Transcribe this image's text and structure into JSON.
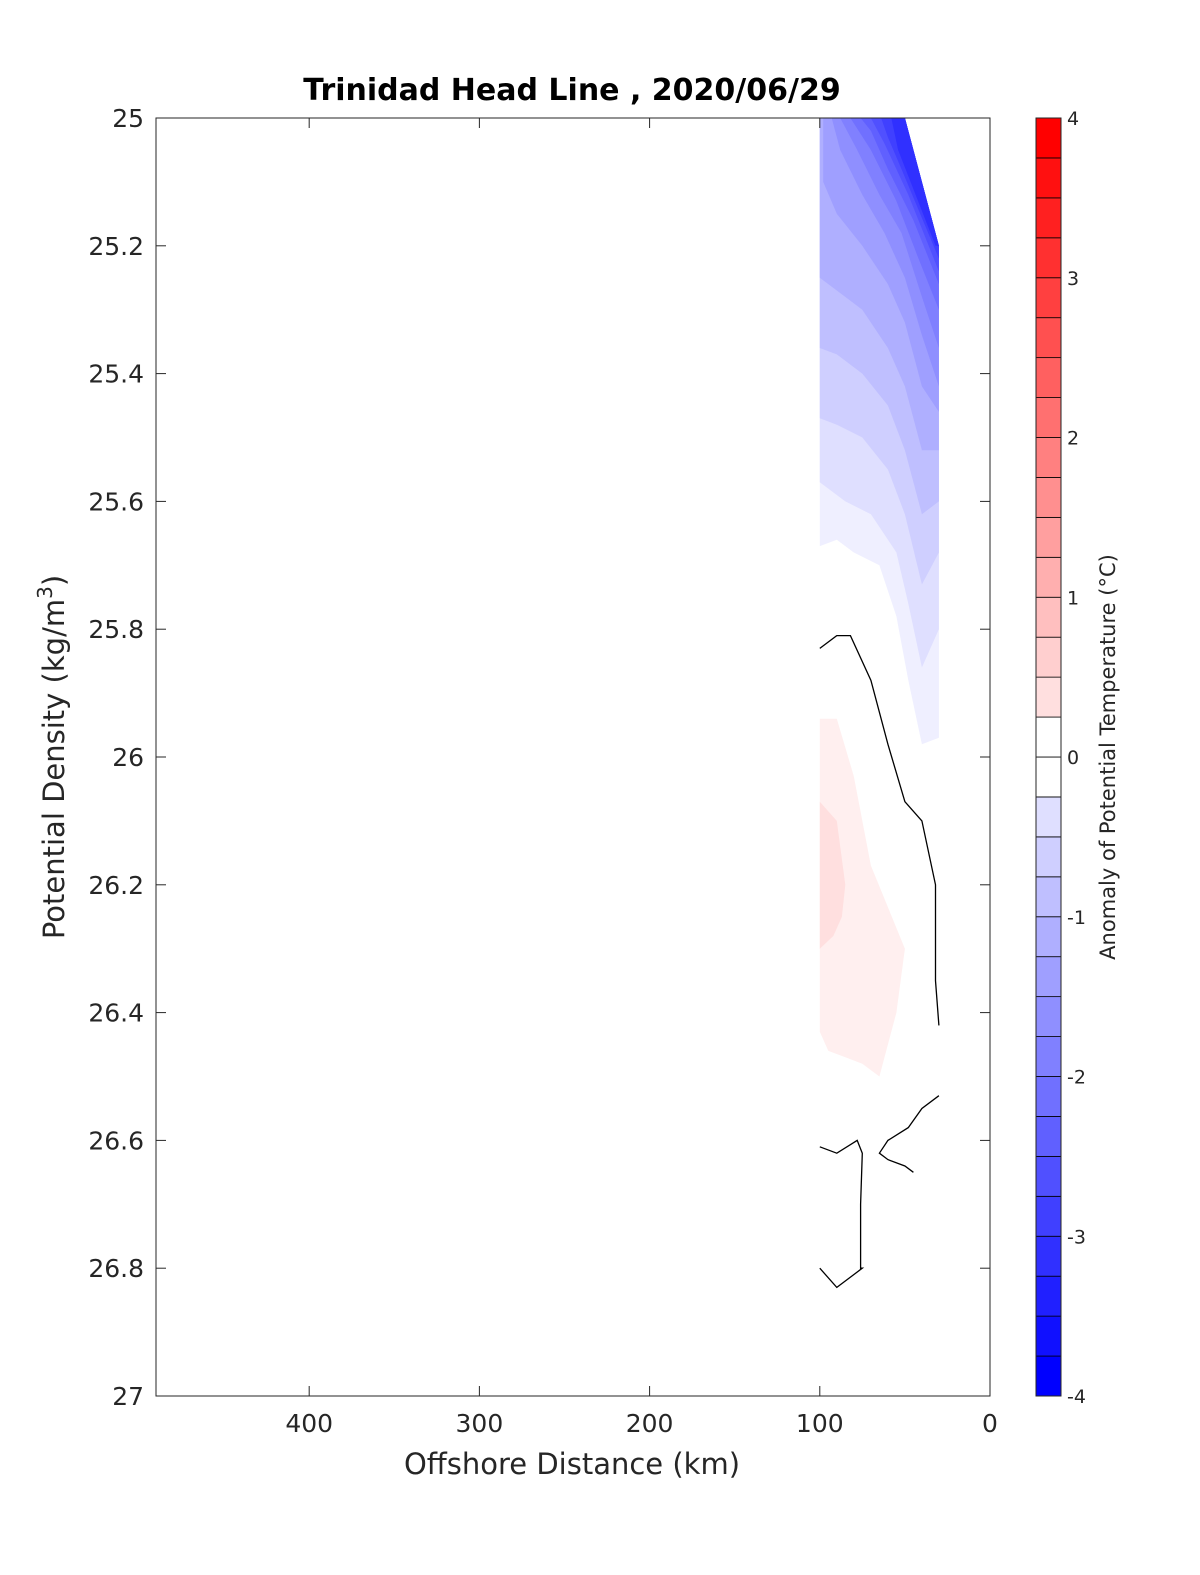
{
  "chart_data": {
    "type": "contour",
    "title": "Trinidad Head Line , 2020/06/29",
    "xlabel": "Offshore Distance (km)",
    "ylabel": "Potential Density (kg/m",
    "ylabel_superscript": "3",
    "ylabel_suffix": ")",
    "xlim": [
      490,
      0
    ],
    "x_reversed": true,
    "ylim": [
      25,
      27
    ],
    "y_reversed": true,
    "x_ticks": [
      400,
      300,
      200,
      100,
      0
    ],
    "x_tick_labels": [
      "400",
      "300",
      "200",
      "100",
      "0"
    ],
    "y_ticks": [
      25,
      25.2,
      25.4,
      25.6,
      25.8,
      26,
      26.2,
      26.4,
      26.6,
      26.8,
      27
    ],
    "y_tick_labels": [
      "25",
      "25.2",
      "25.4",
      "25.6",
      "25.8",
      "26",
      "26.2",
      "26.4",
      "26.6",
      "26.8",
      "27"
    ],
    "grid": false,
    "colorbar": {
      "label": "Anomaly of Potential Temperature (°C)",
      "range": [
        -4,
        4
      ],
      "levels_step": 0.25,
      "ticks": [
        -4,
        -3,
        -2,
        -1,
        0,
        1,
        2,
        3,
        4
      ],
      "tick_labels": [
        "-4",
        "-3",
        "-2",
        "-1",
        "0",
        "1",
        "2",
        "3",
        "4"
      ],
      "colormap": "blue-white-red",
      "low_color": "#0000ff",
      "mid_color": "#ffffff",
      "high_color": "#ff0000"
    },
    "filled_regions": [
      {
        "value_level": -0.25,
        "points": [
          [
            100,
            25
          ],
          [
            50,
            25
          ],
          [
            30,
            25.2
          ],
          [
            30,
            25.97
          ],
          [
            40,
            25.98
          ],
          [
            48,
            25.88
          ],
          [
            55,
            25.78
          ],
          [
            65,
            25.7
          ],
          [
            80,
            25.68
          ],
          [
            90,
            25.66
          ],
          [
            100,
            25.67
          ]
        ]
      },
      {
        "value_level": -0.5,
        "points": [
          [
            100,
            25
          ],
          [
            50,
            25
          ],
          [
            30,
            25.2
          ],
          [
            30,
            25.8
          ],
          [
            40,
            25.86
          ],
          [
            48,
            25.76
          ],
          [
            55,
            25.68
          ],
          [
            70,
            25.62
          ],
          [
            85,
            25.6
          ],
          [
            100,
            25.57
          ]
        ]
      },
      {
        "value_level": -0.75,
        "points": [
          [
            100,
            25
          ],
          [
            50,
            25
          ],
          [
            30,
            25.2
          ],
          [
            30,
            25.68
          ],
          [
            40,
            25.73
          ],
          [
            50,
            25.62
          ],
          [
            60,
            25.55
          ],
          [
            75,
            25.5
          ],
          [
            90,
            25.48
          ],
          [
            100,
            25.47
          ]
        ]
      },
      {
        "value_level": -1.0,
        "points": [
          [
            100,
            25
          ],
          [
            50,
            25
          ],
          [
            30,
            25.2
          ],
          [
            30,
            25.6
          ],
          [
            40,
            25.62
          ],
          [
            50,
            25.52
          ],
          [
            60,
            25.45
          ],
          [
            75,
            25.4
          ],
          [
            90,
            25.37
          ],
          [
            100,
            25.36
          ]
        ]
      },
      {
        "value_level": -1.25,
        "points": [
          [
            100,
            25
          ],
          [
            50,
            25
          ],
          [
            30,
            25.2
          ],
          [
            30,
            25.52
          ],
          [
            40,
            25.52
          ],
          [
            50,
            25.42
          ],
          [
            60,
            25.36
          ],
          [
            75,
            25.3
          ],
          [
            90,
            25.27
          ],
          [
            100,
            25.25
          ]
        ]
      },
      {
        "value_level": -1.5,
        "points": [
          [
            98,
            25
          ],
          [
            50,
            25
          ],
          [
            30,
            25.2
          ],
          [
            30,
            25.46
          ],
          [
            40,
            25.42
          ],
          [
            50,
            25.32
          ],
          [
            60,
            25.26
          ],
          [
            75,
            25.2
          ],
          [
            90,
            25.15
          ],
          [
            98,
            25.1
          ]
        ]
      },
      {
        "value_level": -1.75,
        "points": [
          [
            93,
            25
          ],
          [
            50,
            25
          ],
          [
            30,
            25.2
          ],
          [
            30,
            25.42
          ],
          [
            40,
            25.34
          ],
          [
            50,
            25.25
          ],
          [
            62,
            25.18
          ],
          [
            75,
            25.12
          ],
          [
            88,
            25.05
          ]
        ]
      },
      {
        "value_level": -2.0,
        "points": [
          [
            88,
            25
          ],
          [
            50,
            25
          ],
          [
            30,
            25.2
          ],
          [
            30,
            25.36
          ],
          [
            40,
            25.28
          ],
          [
            52,
            25.18
          ],
          [
            65,
            25.12
          ],
          [
            78,
            25.05
          ]
        ]
      },
      {
        "value_level": -2.25,
        "points": [
          [
            82,
            25
          ],
          [
            50,
            25
          ],
          [
            30,
            25.2
          ],
          [
            30,
            25.3
          ],
          [
            42,
            25.22
          ],
          [
            55,
            25.13
          ],
          [
            70,
            25.05
          ]
        ]
      },
      {
        "value_level": -2.5,
        "points": [
          [
            76,
            25
          ],
          [
            50,
            25
          ],
          [
            30,
            25.2
          ],
          [
            30,
            25.26
          ],
          [
            45,
            25.16
          ],
          [
            60,
            25.08
          ],
          [
            70,
            25.02
          ]
        ]
      },
      {
        "value_level": -2.75,
        "points": [
          [
            70,
            25
          ],
          [
            50,
            25
          ],
          [
            30,
            25.2
          ],
          [
            30,
            25.24
          ],
          [
            48,
            25.12
          ],
          [
            62,
            25.04
          ]
        ]
      },
      {
        "value_level": -3.0,
        "points": [
          [
            64,
            25
          ],
          [
            50,
            25
          ],
          [
            30,
            25.2
          ],
          [
            30,
            25.22
          ],
          [
            52,
            25.08
          ],
          [
            60,
            25.03
          ]
        ]
      },
      {
        "value_level": -3.25,
        "points": [
          [
            58,
            25
          ],
          [
            50,
            25
          ],
          [
            30,
            25.2
          ],
          [
            32,
            25.2
          ],
          [
            54,
            25.05
          ]
        ]
      },
      {
        "value_level": 0.25,
        "points": [
          [
            100,
            25.94
          ],
          [
            90,
            25.94
          ],
          [
            80,
            26.03
          ],
          [
            70,
            26.17
          ],
          [
            50,
            26.3
          ],
          [
            55,
            26.4
          ],
          [
            65,
            26.5
          ],
          [
            75,
            26.48
          ],
          [
            85,
            26.47
          ],
          [
            95,
            26.46
          ],
          [
            100,
            26.43
          ]
        ]
      },
      {
        "value_level": 0.5,
        "points": [
          [
            100,
            26.07
          ],
          [
            90,
            26.1
          ],
          [
            85,
            26.2
          ],
          [
            87,
            26.25
          ],
          [
            92,
            26.28
          ],
          [
            100,
            26.3
          ]
        ]
      }
    ],
    "contour_lines": [
      {
        "value_level": 0,
        "points": [
          [
            100,
            25.83
          ],
          [
            90,
            25.81
          ],
          [
            82,
            25.81
          ],
          [
            70,
            25.88
          ],
          [
            60,
            25.98
          ],
          [
            50,
            26.07
          ],
          [
            40,
            26.1
          ],
          [
            32,
            26.2
          ],
          [
            32,
            26.3
          ],
          [
            32,
            26.35
          ],
          [
            30,
            26.42
          ]
        ]
      },
      {
        "value_level": 0,
        "points": [
          [
            30,
            26.53
          ],
          [
            40,
            26.55
          ],
          [
            48,
            26.58
          ],
          [
            60,
            26.6
          ],
          [
            65,
            26.62
          ],
          [
            60,
            26.63
          ],
          [
            50,
            26.64
          ],
          [
            45,
            26.65
          ]
        ]
      },
      {
        "value_level": 0,
        "points": [
          [
            100,
            26.61
          ],
          [
            90,
            26.62
          ],
          [
            78,
            26.6
          ],
          [
            75,
            26.62
          ],
          [
            76,
            26.7
          ],
          [
            76,
            26.8
          ],
          [
            75,
            26.8
          ],
          [
            85,
            26.82
          ],
          [
            90,
            26.83
          ],
          [
            100,
            26.8
          ]
        ]
      }
    ]
  }
}
